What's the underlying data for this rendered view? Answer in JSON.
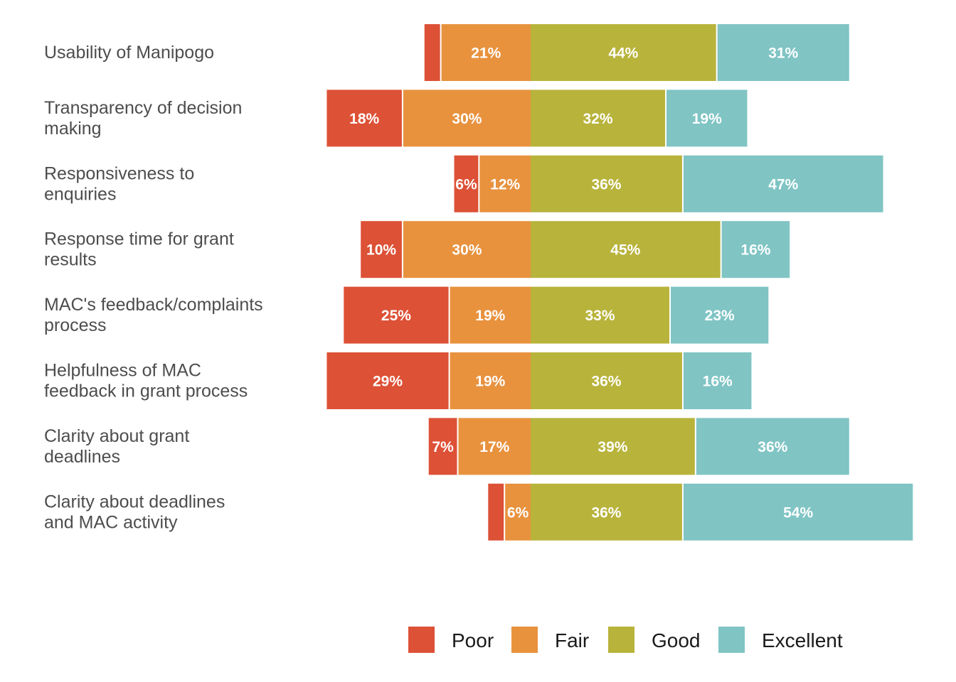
{
  "chart_data": {
    "type": "bar",
    "orientation": "horizontal",
    "stacking": "diverging",
    "title": "",
    "xlabel": "",
    "ylabel": "",
    "grid": false,
    "legend_position": "bottom",
    "categories": [
      "Usability of Manipogo",
      "Transparency of decision making",
      "Responsiveness to enquiries",
      "Response time for grant results",
      "MAC's feedback/complaints process",
      "Helpfulness of MAC feedback in grant process",
      "Clarity about grant deadlines",
      "Clarity about deadlines and MAC activity"
    ],
    "category_lines": [
      [
        "Usability of Manipogo"
      ],
      [
        "Transparency of decision",
        "making"
      ],
      [
        "Responsiveness to",
        "enquiries"
      ],
      [
        "Response time for grant",
        "results"
      ],
      [
        "MAC's feedback/complaints",
        "process"
      ],
      [
        "Helpfulness of MAC",
        "feedback in grant process"
      ],
      [
        "Clarity about grant",
        "deadlines"
      ],
      [
        "Clarity about deadlines",
        "and MAC activity"
      ]
    ],
    "series": [
      {
        "name": "Poor",
        "color": "#dd5136",
        "values": [
          4,
          18,
          6,
          10,
          25,
          29,
          7,
          4
        ],
        "labels": [
          "",
          "18%",
          "6%",
          "10%",
          "25%",
          "29%",
          "7%",
          ""
        ]
      },
      {
        "name": "Fair",
        "color": "#e8923e",
        "values": [
          21,
          30,
          12,
          30,
          19,
          19,
          17,
          6
        ],
        "labels": [
          "21%",
          "30%",
          "12%",
          "30%",
          "19%",
          "19%",
          "17%",
          "6%"
        ]
      },
      {
        "name": "Good",
        "color": "#b8b33b",
        "values": [
          44,
          32,
          36,
          45,
          33,
          36,
          39,
          36
        ],
        "labels": [
          "44%",
          "32%",
          "36%",
          "45%",
          "33%",
          "36%",
          "39%",
          "36%"
        ]
      },
      {
        "name": "Excellent",
        "color": "#80c4c4",
        "values": [
          31,
          19,
          47,
          16,
          23,
          16,
          36,
          54
        ],
        "labels": [
          "31%",
          "19%",
          "47%",
          "16%",
          "23%",
          "16%",
          "36%",
          "54%"
        ]
      }
    ]
  }
}
